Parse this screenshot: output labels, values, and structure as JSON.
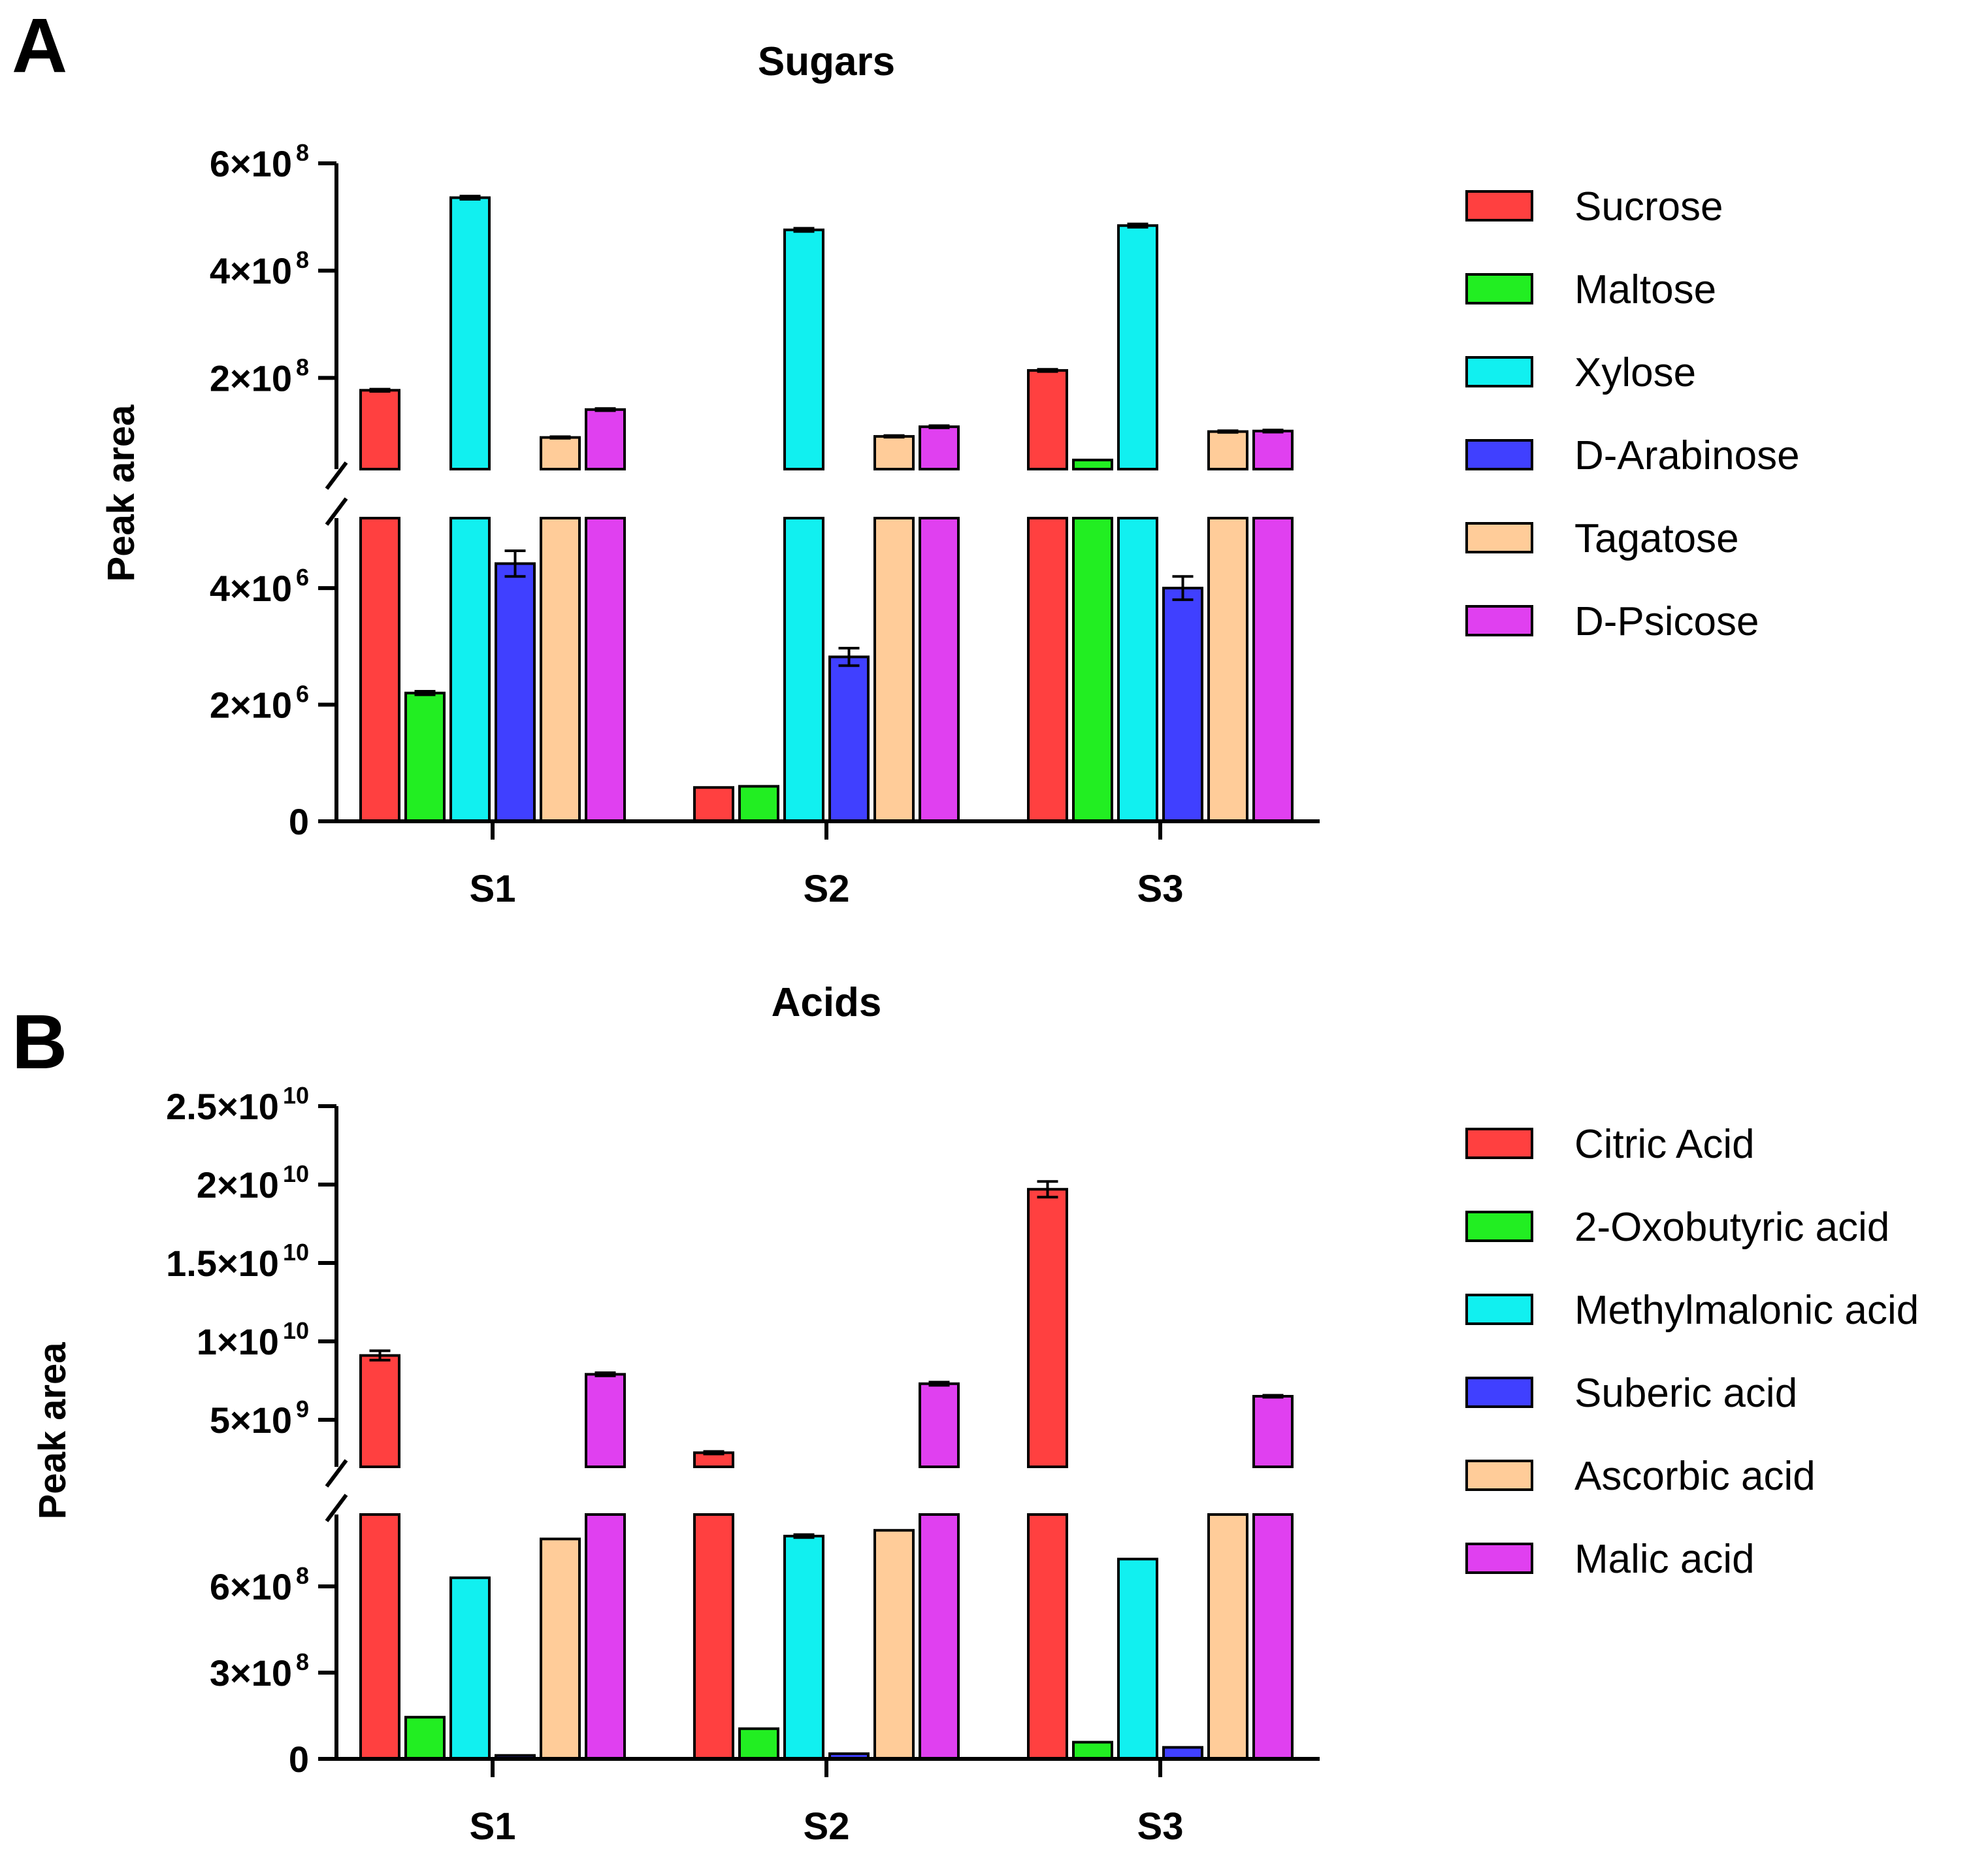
{
  "chart_data": [
    {
      "panel": "A",
      "type": "bar",
      "title": "Sugars",
      "ylabel": "Peak area",
      "xlabel": "",
      "categories": [
        "S1",
        "S2",
        "S3"
      ],
      "y_axis_break": {
        "lower_range": [
          0,
          5200000
        ],
        "upper_range": [
          30000000,
          600000000
        ]
      },
      "lower_ticks": [
        {
          "value": 0,
          "label": "0",
          "exp": ""
        },
        {
          "value": 2000000,
          "label": "2×10",
          "exp": "6"
        },
        {
          "value": 4000000,
          "label": "4×10",
          "exp": "6"
        }
      ],
      "upper_ticks": [
        {
          "value": 200000000,
          "label": "2×10",
          "exp": "8"
        },
        {
          "value": 400000000,
          "label": "4×10",
          "exp": "8"
        },
        {
          "value": 600000000,
          "label": "6×10",
          "exp": "8"
        }
      ],
      "series": [
        {
          "name": "Sucrose",
          "color": "#ff4040",
          "values": [
            177000000,
            580000,
            214000000
          ],
          "errors": [
            2000000,
            0,
            2000000
          ]
        },
        {
          "name": "Maltose",
          "color": "#22ee22",
          "values": [
            2200000,
            600000,
            47000000
          ],
          "errors": [
            30000,
            0,
            0
          ]
        },
        {
          "name": "Xylose",
          "color": "#11f0f0",
          "values": [
            536000000,
            476000000,
            484000000
          ],
          "errors": [
            3000000,
            3000000,
            3000000
          ]
        },
        {
          "name": "D-Arabinose",
          "color": "#4040ff",
          "values": [
            4420000,
            2820000,
            4000000
          ],
          "errors": [
            220000,
            150000,
            200000
          ]
        },
        {
          "name": "Tagatose",
          "color": "#ffcc99",
          "values": [
            89000000,
            91000000,
            100000000
          ],
          "errors": [
            1500000,
            1500000,
            1500000
          ]
        },
        {
          "name": "D-Psicose",
          "color": "#e040f0",
          "values": [
            141000000,
            109000000,
            101000000
          ],
          "errors": [
            2000000,
            2000000,
            2000000
          ]
        }
      ]
    },
    {
      "panel": "B",
      "type": "bar",
      "title": "Acids",
      "ylabel": "Peak area",
      "xlabel": "",
      "categories": [
        "S1",
        "S2",
        "S3"
      ],
      "y_axis_break": {
        "lower_range": [
          0,
          850000000
        ],
        "upper_range": [
          2000000000,
          25000000000
        ]
      },
      "lower_ticks": [
        {
          "value": 0,
          "label": "0",
          "exp": ""
        },
        {
          "value": 300000000,
          "label": "3×10",
          "exp": "8"
        },
        {
          "value": 600000000,
          "label": "6×10",
          "exp": "8"
        }
      ],
      "upper_ticks": [
        {
          "value": 5000000000,
          "label": "5×10",
          "exp": "9"
        },
        {
          "value": 10000000000,
          "label": "1×10",
          "exp": "10"
        },
        {
          "value": 15000000000,
          "label": "1.5×10",
          "exp": "10"
        },
        {
          "value": 20000000000,
          "label": "2×10",
          "exp": "10"
        },
        {
          "value": 25000000000,
          "label": "2.5×10",
          "exp": "10"
        }
      ],
      "series": [
        {
          "name": "Citric Acid",
          "color": "#ff4040",
          "values": [
            9100000000,
            2900000000,
            19700000000
          ],
          "errors": [
            300000000,
            80000000,
            500000000
          ]
        },
        {
          "name": "2-Oxobutyric acid",
          "color": "#22ee22",
          "values": [
            145000000,
            105000000,
            58000000
          ],
          "errors": [
            0,
            0,
            0
          ]
        },
        {
          "name": "Methylmalonic acid",
          "color": "#11f0f0",
          "values": [
            630000000,
            775000000,
            695000000
          ],
          "errors": [
            0,
            5000000,
            0
          ]
        },
        {
          "name": "Suberic acid",
          "color": "#4040ff",
          "values": [
            12000000,
            18000000,
            40000000
          ],
          "errors": [
            0,
            0,
            0
          ]
        },
        {
          "name": "Ascorbic acid",
          "color": "#ffcc99",
          "values": [
            765000000,
            795000000,
            2000000000
          ],
          "errors": [
            0,
            0,
            0
          ]
        },
        {
          "name": "Malic acid",
          "color": "#e040f0",
          "values": [
            7900000000,
            7300000000,
            6500000000
          ],
          "errors": [
            100000000,
            100000000,
            60000000
          ]
        }
      ]
    }
  ]
}
